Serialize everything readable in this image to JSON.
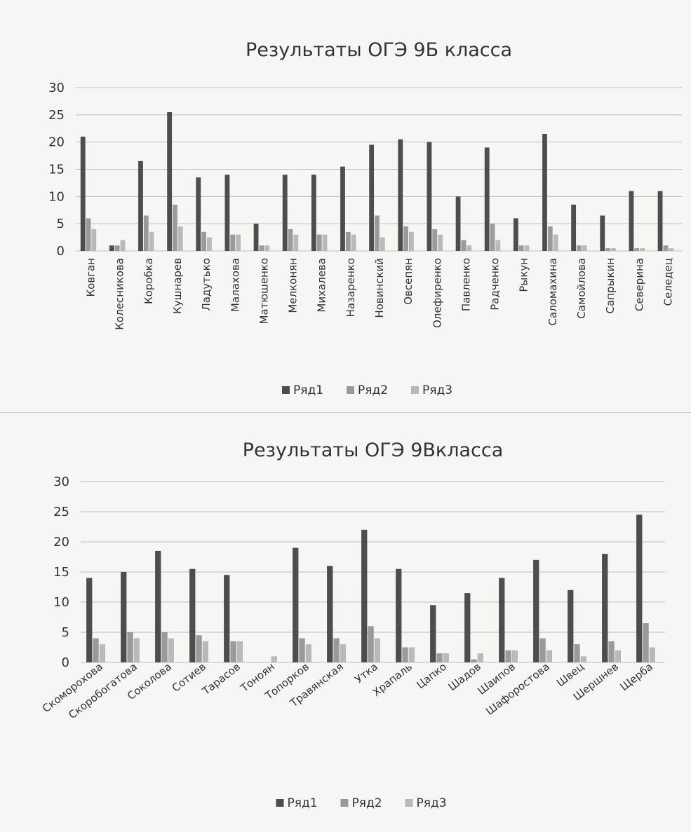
{
  "chart_data": [
    {
      "type": "bar",
      "title": "Результаты ОГЭ 9Б класса",
      "categories": [
        "Ковган",
        "Колесникова",
        "Коробка",
        "Кушнарев",
        "Ладутько",
        "Малахова",
        "Матюшенко",
        "Мелконян",
        "Михалева",
        "Назаренко",
        "Новинский",
        "Овсепян",
        "Олефиренко",
        "Павленко",
        "Радченко",
        "Рыкун",
        "Саломахина",
        "Самойлова",
        "Сапрыкин",
        "Северина",
        "Селедец"
      ],
      "series": [
        {
          "name": "Ряд1",
          "values": [
            21,
            1,
            16.5,
            25.5,
            13.5,
            14,
            5,
            14,
            14,
            15.5,
            19.5,
            20.5,
            20,
            10,
            19,
            6,
            21.5,
            8.5,
            6.5,
            11,
            11
          ]
        },
        {
          "name": "Ряд2",
          "values": [
            6,
            1,
            6.5,
            8.5,
            3.5,
            3,
            1,
            4,
            3,
            3.5,
            6.5,
            4.5,
            4,
            2,
            5,
            1,
            4.5,
            1,
            0.5,
            0.5,
            1
          ]
        },
        {
          "name": "Ряд3",
          "values": [
            4,
            2,
            3.5,
            4.5,
            2.5,
            3,
            1,
            3,
            3,
            3,
            2.5,
            3.5,
            3,
            1,
            2,
            1,
            3,
            1,
            0.5,
            0.5,
            0.5
          ]
        }
      ],
      "ylim": [
        0,
        30
      ],
      "yticks": [
        0,
        5,
        10,
        15,
        20,
        25,
        30
      ],
      "legend": "bottom",
      "grid": true
    },
    {
      "type": "bar",
      "title": "Результаты ОГЭ 9Вкласса",
      "categories": [
        "Скоморохова",
        "Скоробогатова",
        "Соколова",
        "Сотиев",
        "Тарасов",
        "Тоноян",
        "Топорков",
        "Травянская",
        "Утка",
        "Храпаль",
        "Цапко",
        "Шадов",
        "Шаипов",
        "Шафоростова",
        "Швец",
        "Шершнев",
        "Щерба"
      ],
      "series": [
        {
          "name": "Ряд1",
          "values": [
            14,
            15,
            18.5,
            15.5,
            14.5,
            0,
            19,
            16,
            22,
            15.5,
            9.5,
            11.5,
            14,
            17,
            12,
            18,
            24.5
          ]
        },
        {
          "name": "Ряд2",
          "values": [
            4,
            5,
            5,
            4.5,
            3.5,
            0,
            4,
            4,
            6,
            2.5,
            1.5,
            0.5,
            2,
            4,
            3,
            3.5,
            6.5
          ]
        },
        {
          "name": "Ряд3",
          "values": [
            3,
            4,
            4,
            3.5,
            3.5,
            1,
            3,
            3,
            4,
            2.5,
            1.5,
            1.5,
            2,
            2,
            1,
            2,
            2.5
          ]
        }
      ],
      "ylim": [
        0,
        30
      ],
      "yticks": [
        0,
        5,
        10,
        15,
        20,
        25,
        30
      ],
      "legend": "bottom",
      "grid": true
    }
  ],
  "colors": {
    "series": [
      "#4d4d4d",
      "#9a9a9a",
      "#b9b9b9"
    ],
    "grid": "#bdbdbd",
    "text": "#333333"
  }
}
